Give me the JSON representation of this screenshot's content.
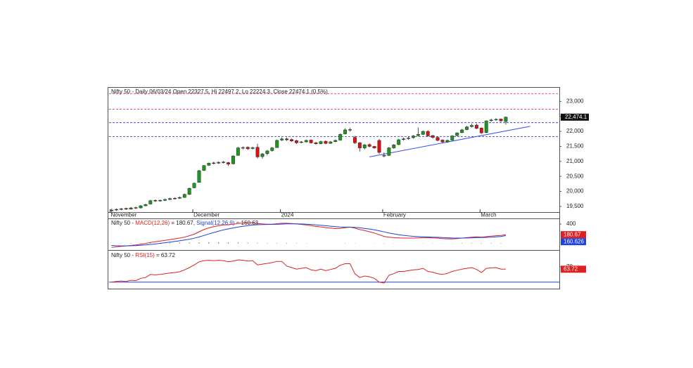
{
  "chart_data": [
    {
      "type": "candlestick",
      "title": "Nifty 50 - Daily 06/03/24 Open 22327.5, Hi 22497.2, Lo 22224.3, Close 22474.1 (0.5%)",
      "categories": [
        "November",
        null,
        null,
        null,
        null,
        null,
        null,
        null,
        null,
        null,
        null,
        null,
        null,
        null,
        null,
        null,
        null,
        "December",
        null,
        null,
        null,
        null,
        null,
        null,
        null,
        null,
        null,
        null,
        null,
        null,
        null,
        null,
        null,
        null,
        null,
        "2024",
        null,
        null,
        null,
        null,
        null,
        null,
        null,
        null,
        null,
        null,
        null,
        null,
        null,
        null,
        null,
        null,
        null,
        null,
        null,
        null,
        "February",
        null,
        null,
        null,
        null,
        null,
        null,
        null,
        null,
        null,
        null,
        null,
        null,
        null,
        null,
        null,
        null,
        null,
        null,
        null,
        "March",
        null,
        null,
        null,
        null
      ],
      "ohlc": [
        [
          19350,
          19420,
          19320,
          19380
        ],
        [
          19380,
          19430,
          19350,
          19400
        ],
        [
          19400,
          19450,
          19370,
          19420
        ],
        [
          19430,
          19460,
          19380,
          19410
        ],
        [
          19410,
          19480,
          19390,
          19450
        ],
        [
          19460,
          19490,
          19410,
          19440
        ],
        [
          19450,
          19550,
          19430,
          19520
        ],
        [
          19520,
          19590,
          19500,
          19560
        ],
        [
          19580,
          19720,
          19560,
          19690
        ],
        [
          19700,
          19730,
          19650,
          19680
        ],
        [
          19680,
          19730,
          19660,
          19700
        ],
        [
          19700,
          19760,
          19680,
          19730
        ],
        [
          19730,
          19790,
          19710,
          19760
        ],
        [
          19770,
          19800,
          19730,
          19770
        ],
        [
          19770,
          19830,
          19750,
          19800
        ],
        [
          19800,
          19930,
          19780,
          19900
        ],
        [
          19900,
          20130,
          19880,
          20100
        ],
        [
          20120,
          20300,
          20100,
          20270
        ],
        [
          20300,
          20720,
          20290,
          20690
        ],
        [
          20700,
          20880,
          20680,
          20860
        ],
        [
          20870,
          20960,
          20850,
          20940
        ],
        [
          20950,
          20990,
          20900,
          20940
        ],
        [
          20940,
          21000,
          20920,
          20970
        ],
        [
          20980,
          21010,
          20930,
          20960
        ],
        [
          20960,
          20980,
          20850,
          20910
        ],
        [
          20920,
          21200,
          20900,
          21180
        ],
        [
          21200,
          21480,
          21190,
          21450
        ],
        [
          21460,
          21500,
          21400,
          21460
        ],
        [
          21470,
          21500,
          21380,
          21420
        ],
        [
          21430,
          21490,
          21400,
          21460
        ],
        [
          21470,
          21590,
          21100,
          21150
        ],
        [
          21160,
          21280,
          21090,
          21250
        ],
        [
          21260,
          21380,
          21200,
          21350
        ],
        [
          21360,
          21480,
          21320,
          21450
        ],
        [
          21460,
          21730,
          21450,
          21700
        ],
        [
          21710,
          21800,
          21680,
          21750
        ],
        [
          21750,
          21800,
          21680,
          21720
        ],
        [
          21730,
          21760,
          21650,
          21680
        ],
        [
          21690,
          21720,
          21580,
          21620
        ],
        [
          21630,
          21680,
          21600,
          21650
        ],
        [
          21650,
          21730,
          21630,
          21700
        ],
        [
          21710,
          21730,
          21590,
          21620
        ],
        [
          21620,
          21650,
          21550,
          21590
        ],
        [
          21590,
          21690,
          21570,
          21660
        ],
        [
          21670,
          21700,
          21570,
          21600
        ],
        [
          21600,
          21680,
          21590,
          21650
        ],
        [
          21660,
          21730,
          21640,
          21700
        ],
        [
          21710,
          21930,
          21690,
          21900
        ],
        [
          21920,
          22100,
          21900,
          22050
        ],
        [
          22060,
          22120,
          21990,
          22060
        ],
        [
          21800,
          21850,
          21580,
          21620
        ],
        [
          21620,
          21640,
          21330,
          21450
        ],
        [
          21450,
          21580,
          21400,
          21550
        ],
        [
          21560,
          21600,
          21470,
          21500
        ],
        [
          21500,
          21520,
          21420,
          21450
        ],
        [
          21700,
          21750,
          21250,
          21300
        ],
        [
          21180,
          21300,
          21140,
          21200
        ],
        [
          21200,
          21480,
          21180,
          21450
        ],
        [
          21450,
          21580,
          21420,
          21550
        ],
        [
          21560,
          21750,
          21540,
          21720
        ],
        [
          21730,
          21790,
          21690,
          21750
        ],
        [
          21760,
          21820,
          21720,
          21780
        ],
        [
          21790,
          21880,
          21760,
          21850
        ],
        [
          21860,
          22130,
          21830,
          21900
        ],
        [
          21900,
          22030,
          21880,
          22000
        ],
        [
          22000,
          22040,
          21830,
          21850
        ],
        [
          21860,
          21880,
          21760,
          21800
        ],
        [
          21800,
          21830,
          21670,
          21700
        ],
        [
          21710,
          21740,
          21600,
          21650
        ],
        [
          21650,
          21730,
          21620,
          21700
        ],
        [
          21710,
          21870,
          21690,
          21850
        ],
        [
          21860,
          21970,
          21840,
          21950
        ],
        [
          21960,
          22080,
          21940,
          22050
        ],
        [
          22060,
          22180,
          22040,
          22150
        ],
        [
          22160,
          22250,
          22130,
          22200
        ],
        [
          22210,
          22260,
          22080,
          22100
        ],
        [
          22110,
          22130,
          21920,
          21950
        ],
        [
          21960,
          22370,
          21940,
          22350
        ],
        [
          22360,
          22420,
          22320,
          22380
        ],
        [
          22390,
          22440,
          22350,
          22400
        ],
        [
          22410,
          22430,
          22330,
          22350
        ],
        [
          22327.5,
          22497.2,
          22224.3,
          22474.1
        ]
      ],
      "color_up": "#1a9a1a",
      "color_down": "#e01010",
      "xlim": [
        -0.5,
        92
      ],
      "ylim": [
        19310,
        23430
      ],
      "yticks": [
        {
          "value": 19500,
          "label": "19,500"
        },
        {
          "value": 20000,
          "label": "20,000"
        },
        {
          "value": 20500,
          "label": "20,500"
        },
        {
          "value": 21000,
          "label": "21,000"
        },
        {
          "value": 21500,
          "label": "21,500"
        },
        {
          "value": 22000,
          "label": "22,000"
        },
        {
          "value": 22500,
          "label": "22,500"
        },
        {
          "value": 23000,
          "label": "23,000"
        }
      ],
      "hlines": [
        {
          "value": 23260,
          "color": "#e02020"
        },
        {
          "value": 22740,
          "color": "#e02020"
        },
        {
          "value": 22290,
          "color": "#2030c0"
        },
        {
          "value": 21830,
          "color": "#2030c0"
        }
      ],
      "trendline": {
        "x": [
          53,
          86
        ],
        "y": [
          21150,
          22170
        ],
        "color": "#3a4ef0"
      },
      "last_label": {
        "value": 22474.1,
        "label": "22,474.1"
      }
    },
    {
      "type": "line",
      "legend_prefix": "Nifty 50 - ",
      "series": [
        {
          "name": "MACD(12,26)",
          "legend_value": " = 180.67, ",
          "color": "#e02020",
          "end_value": 180.67,
          "values": [
            -80,
            -70,
            -60,
            -50,
            -40,
            -30,
            -15,
            0,
            20,
            35,
            50,
            65,
            80,
            95,
            110,
            130,
            160,
            190,
            240,
            285,
            320,
            345,
            365,
            380,
            385,
            395,
            410,
            420,
            425,
            425,
            410,
            400,
            395,
            395,
            405,
            415,
            415,
            410,
            400,
            390,
            380,
            365,
            350,
            340,
            325,
            315,
            305,
            310,
            325,
            335,
            315,
            285,
            265,
            240,
            215,
            180,
            145,
            130,
            120,
            115,
            110,
            110,
            110,
            115,
            120,
            120,
            115,
            110,
            100,
            95,
            95,
            100,
            110,
            120,
            130,
            135,
            130,
            140,
            150,
            160,
            165,
            180.67
          ]
        },
        {
          "name": "Signal(12,26,9)",
          "legend_value": " = 160.63",
          "color": "#2040e0",
          "end_value": 160.626,
          "values": [
            -40,
            -46,
            -49,
            -49,
            -47,
            -44,
            -38,
            -31,
            -21,
            -10,
            2,
            15,
            28,
            42,
            55,
            70,
            88,
            108,
            134,
            164,
            195,
            225,
            253,
            278,
            299,
            318,
            337,
            353,
            368,
            379,
            385,
            388,
            390,
            392,
            394,
            398,
            402,
            403,
            403,
            400,
            396,
            390,
            382,
            373,
            364,
            354,
            344,
            338,
            335,
            335,
            331,
            322,
            310,
            296,
            280,
            260,
            237,
            216,
            197,
            180,
            167,
            156,
            147,
            141,
            137,
            134,
            130,
            126,
            121,
            116,
            112,
            110,
            110,
            112,
            115,
            119,
            121,
            125,
            130,
            136,
            142,
            160.63
          ]
        }
      ],
      "histogram": {
        "color": "#333333",
        "values": [
          -40,
          -24,
          -11,
          -1,
          7,
          14,
          23,
          31,
          41,
          45,
          48,
          50,
          52,
          53,
          55,
          60,
          72,
          82,
          106,
          121,
          125,
          120,
          112,
          102,
          86,
          77,
          73,
          67,
          57,
          46,
          25,
          12,
          5,
          3,
          11,
          17,
          13,
          7,
          -3,
          -10,
          -16,
          -25,
          -32,
          -33,
          -39,
          -39,
          -39,
          -28,
          -10,
          0,
          -16,
          -37,
          -45,
          -56,
          -65,
          -80,
          -92,
          -86,
          -77,
          -65,
          -57,
          -46,
          -37,
          -26,
          -17,
          -14,
          -15,
          -16,
          -21,
          -21,
          -17,
          -10,
          0,
          8,
          15,
          16,
          9,
          15,
          20,
          24,
          23,
          20
        ]
      },
      "xlim": [
        -0.5,
        92
      ],
      "ylim": [
        -120,
        500
      ],
      "yticks": [
        400
      ]
    },
    {
      "type": "line",
      "legend_prefix": "Nifty 50 - ",
      "series": [
        {
          "name": "RSI(15)",
          "legend_value": " = 63.72",
          "color": "#e02020",
          "end_value": 63.72,
          "values": [
            30,
            32,
            33,
            32,
            35,
            34,
            40,
            42,
            50,
            49,
            50,
            52,
            54,
            55,
            57,
            62,
            68,
            75,
            83,
            86,
            87,
            86,
            87,
            86,
            83,
            85,
            88,
            87,
            85,
            86,
            75,
            77,
            79,
            81,
            84,
            84,
            72,
            68,
            64,
            66,
            68,
            62,
            60,
            64,
            60,
            63,
            66,
            74,
            78,
            78,
            52,
            42,
            46,
            44,
            40,
            30,
            28,
            48,
            52,
            58,
            58,
            60,
            62,
            63,
            66,
            58,
            56,
            52,
            50,
            53,
            58,
            61,
            64,
            66,
            68,
            63,
            55,
            66,
            67,
            68,
            64,
            63.72
          ]
        }
      ],
      "ref_lines": [
        {
          "value": 30,
          "color": "#2040e0"
        }
      ],
      "xlim": [
        -0.5,
        92
      ],
      "ylim": [
        15,
        110
      ],
      "yticks": [
        70
      ]
    }
  ]
}
